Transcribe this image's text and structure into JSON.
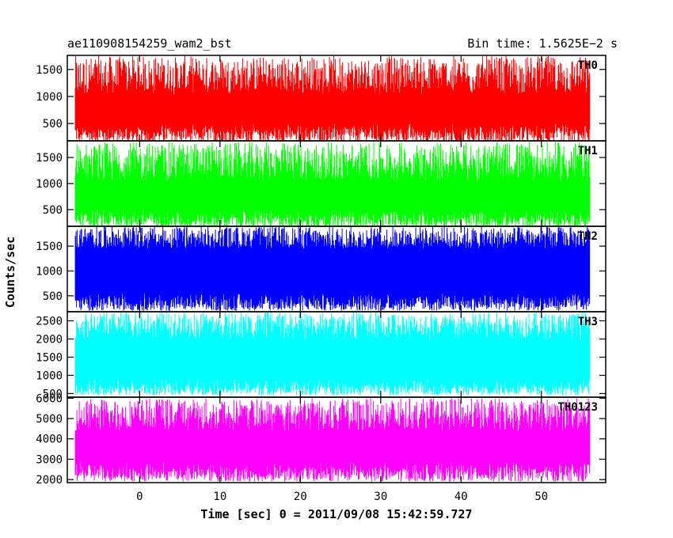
{
  "chart_data": {
    "type": "line",
    "title_left": "ae110908154259_wam2_bst",
    "title_right": "Bin time: 1.5625E−2 s",
    "xlabel": "Time [sec] 0 = 2011/09/08 15:42:59.727",
    "ylabel": "Counts/sec",
    "xlim": [
      -9,
      58
    ],
    "x_data_range": [
      -8,
      56
    ],
    "xticks": [
      0,
      10,
      20,
      30,
      40,
      50
    ],
    "xtick_labels": [
      "0",
      "10",
      "20",
      "30",
      "40",
      "50"
    ],
    "grid": false,
    "panels": [
      {
        "name": "TH0",
        "color": "#ff0000",
        "ylim": [
          180,
          1760
        ],
        "yticks": [
          500,
          1000,
          1500
        ],
        "ytick_labels": [
          "500",
          "1000",
          "1500"
        ],
        "baseline": 700,
        "low_range": [
          150,
          500
        ],
        "high_range": [
          1050,
          1750
        ]
      },
      {
        "name": "TH1",
        "color": "#00ff00",
        "ylim": [
          180,
          1820
        ],
        "yticks": [
          500,
          1000,
          1500
        ],
        "ytick_labels": [
          "500",
          "1000",
          "1500"
        ],
        "baseline": 700,
        "low_range": [
          150,
          500
        ],
        "high_range": [
          1050,
          1800
        ]
      },
      {
        "name": "TH2",
        "color": "#0000ff",
        "ylim": [
          180,
          1900
        ],
        "yticks": [
          500,
          1000,
          1500
        ],
        "ytick_labels": [
          "500",
          "1000",
          "1500"
        ],
        "baseline": 950,
        "low_range": [
          200,
          550
        ],
        "high_range": [
          1450,
          1900
        ]
      },
      {
        "name": "TH3",
        "color": "#00ffff",
        "ylim": [
          400,
          2750
        ],
        "yticks": [
          500,
          1000,
          1500,
          2000,
          2500
        ],
        "ytick_labels": [
          "500",
          "1000",
          "1500",
          "2000",
          "2500"
        ],
        "baseline": 1300,
        "low_range": [
          450,
          900
        ],
        "high_range": [
          2000,
          2750
        ]
      },
      {
        "name": "TH0123",
        "color": "#ff00ff",
        "ylim": [
          1850,
          6050
        ],
        "yticks": [
          2000,
          3000,
          4000,
          5000,
          6000
        ],
        "ytick_labels": [
          "2000",
          "3000",
          "4000",
          "5000",
          "6000"
        ],
        "baseline": 3600,
        "low_range": [
          1900,
          2900
        ],
        "high_range": [
          4400,
          6000
        ]
      }
    ]
  }
}
